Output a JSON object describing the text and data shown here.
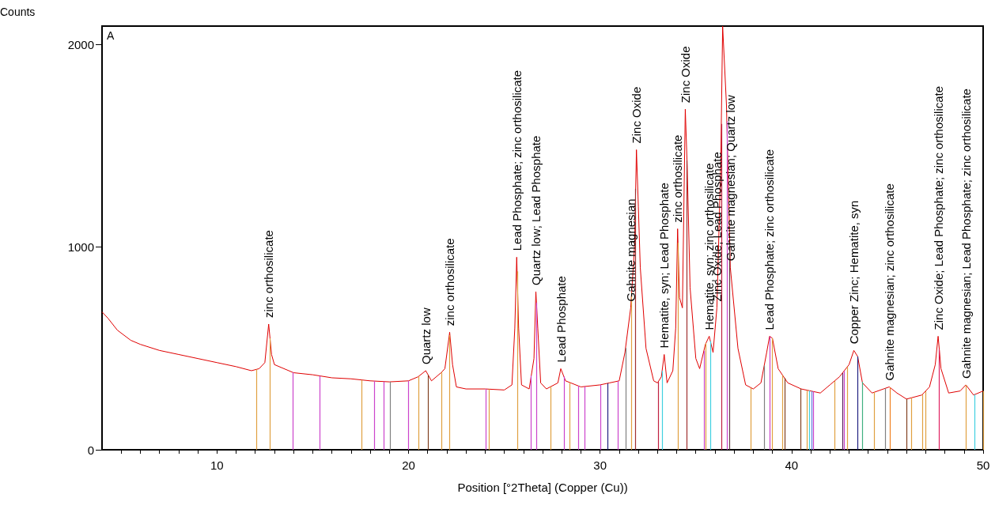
{
  "chart_data": {
    "type": "line",
    "ylabel": "Counts",
    "xlabel": "Position [°2Theta] (Copper (Cu))",
    "xlim": [
      4,
      50
    ],
    "ylim": [
      0,
      2090
    ],
    "xticks": [
      {
        "value": 5,
        "label": null
      },
      {
        "value": 6,
        "label": null
      },
      {
        "value": 7,
        "label": null
      },
      {
        "value": 8,
        "label": null
      },
      {
        "value": 9,
        "label": null
      },
      10,
      {
        "value": 11,
        "label": null
      },
      {
        "value": 12,
        "label": null
      },
      {
        "value": 13,
        "label": null
      },
      {
        "value": 14,
        "label": null
      },
      {
        "value": 15,
        "label": null
      },
      {
        "value": 16,
        "label": null
      },
      {
        "value": 17,
        "label": null
      },
      {
        "value": 18,
        "label": null
      },
      {
        "value": 19,
        "label": null
      },
      20,
      {
        "value": 21,
        "label": null
      },
      {
        "value": 22,
        "label": null
      },
      {
        "value": 23,
        "label": null
      },
      {
        "value": 24,
        "label": null
      },
      {
        "value": 25,
        "label": null
      },
      {
        "value": 26,
        "label": null
      },
      {
        "value": 27,
        "label": null
      },
      {
        "value": 28,
        "label": null
      },
      {
        "value": 29,
        "label": null
      },
      30,
      {
        "value": 31,
        "label": null
      },
      {
        "value": 32,
        "label": null
      },
      {
        "value": 33,
        "label": null
      },
      {
        "value": 34,
        "label": null
      },
      {
        "value": 35,
        "label": null
      },
      {
        "value": 36,
        "label": null
      },
      {
        "value": 37,
        "label": null
      },
      {
        "value": 38,
        "label": null
      },
      {
        "value": 39,
        "label": null
      },
      40,
      {
        "value": 41,
        "label": null
      },
      {
        "value": 42,
        "label": null
      },
      {
        "value": 43,
        "label": null
      },
      {
        "value": 44,
        "label": null
      },
      {
        "value": 45,
        "label": null
      },
      {
        "value": 46,
        "label": null
      },
      {
        "value": 47,
        "label": null
      },
      {
        "value": 48,
        "label": null
      },
      {
        "value": 49,
        "label": null
      },
      50
    ],
    "yticks": [
      0,
      1000,
      2000
    ],
    "grid": false,
    "marker": "none",
    "line_style": "solid",
    "series": [
      {
        "color": "#e00000",
        "x": [
          4.0,
          4.3,
          4.8,
          5.5,
          6.0,
          7,
          8,
          9,
          10,
          11,
          11.8,
          12.2,
          12.5,
          12.7,
          12.85,
          13,
          14,
          15,
          16,
          17,
          18,
          19,
          20,
          20.5,
          20.9,
          21.2,
          21.7,
          21.9,
          22.15,
          22.3,
          22.5,
          23,
          24,
          25,
          25.4,
          25.55,
          25.65,
          25.75,
          25.9,
          26.3,
          26.55,
          26.65,
          26.75,
          26.9,
          27.2,
          27.8,
          27.95,
          28.2,
          29,
          30,
          30.5,
          31,
          31.3,
          31.6,
          31.8,
          31.9,
          32.0,
          32.1,
          32.4,
          32.8,
          33.0,
          33.2,
          33.35,
          33.5,
          33.8,
          33.95,
          34.05,
          34.15,
          34.3,
          34.45,
          34.55,
          34.7,
          35.0,
          35.2,
          35.5,
          35.7,
          35.9,
          36.1,
          36.3,
          36.4,
          36.6,
          36.8,
          37.2,
          37.6,
          38.0,
          38.4,
          38.7,
          38.85,
          39.0,
          39.3,
          39.8,
          40.5,
          41,
          41.5,
          42.0,
          42.5,
          43.0,
          43.25,
          43.45,
          43.7,
          44.2,
          44.8,
          45.1,
          45.5,
          46,
          46.8,
          47.2,
          47.5,
          47.65,
          47.8,
          48.2,
          48.8,
          49.1,
          49.5,
          50
        ],
        "values": [
          680,
          650,
          590,
          540,
          520,
          490,
          470,
          450,
          430,
          410,
          390,
          400,
          430,
          620,
          470,
          420,
          380,
          370,
          355,
          350,
          340,
          335,
          340,
          360,
          390,
          340,
          380,
          400,
          580,
          420,
          310,
          300,
          300,
          295,
          320,
          600,
          950,
          600,
          320,
          300,
          450,
          780,
          600,
          330,
          300,
          330,
          400,
          340,
          310,
          320,
          330,
          340,
          480,
          700,
          1000,
          1480,
          1200,
          900,
          500,
          340,
          330,
          360,
          470,
          330,
          390,
          600,
          1090,
          750,
          700,
          1680,
          1400,
          800,
          450,
          400,
          520,
          560,
          480,
          700,
          1400,
          2090,
          1700,
          900,
          500,
          320,
          300,
          330,
          480,
          560,
          550,
          400,
          330,
          300,
          290,
          280,
          320,
          360,
          420,
          490,
          460,
          330,
          280,
          300,
          310,
          280,
          250,
          270,
          310,
          420,
          560,
          400,
          280,
          290,
          320,
          270,
          290
        ]
      }
    ],
    "ref_lines": [
      {
        "axis": "x",
        "value": 12.07,
        "color": "#e0a040"
      },
      {
        "axis": "x",
        "value": 12.77,
        "color": "#e0a040"
      },
      {
        "axis": "x",
        "value": 13.97,
        "color": "#cc44cc"
      },
      {
        "axis": "x",
        "value": 15.37,
        "color": "#cc44cc"
      },
      {
        "axis": "x",
        "value": 17.57,
        "color": "#e0a040"
      },
      {
        "axis": "x",
        "value": 18.2,
        "color": "#cc44cc"
      },
      {
        "axis": "x",
        "value": 18.71,
        "color": "#cc44cc"
      },
      {
        "axis": "x",
        "value": 19.06,
        "color": "#808080"
      },
      {
        "axis": "x",
        "value": 20.0,
        "color": "#cc44cc"
      },
      {
        "axis": "x",
        "value": 20.53,
        "color": "#e0a040"
      },
      {
        "axis": "x",
        "value": 21.03,
        "color": "#804020"
      },
      {
        "axis": "x",
        "value": 21.74,
        "color": "#e0a040"
      },
      {
        "axis": "x",
        "value": 22.13,
        "color": "#e0a040"
      },
      {
        "axis": "x",
        "value": 24.02,
        "color": "#cc44cc"
      },
      {
        "axis": "x",
        "value": 24.21,
        "color": "#e0a040"
      },
      {
        "axis": "x",
        "value": 25.67,
        "color": "#e0a040"
      },
      {
        "axis": "x",
        "value": 26.41,
        "color": "#cc44cc"
      },
      {
        "axis": "x",
        "value": 26.68,
        "color": "#cc44cc"
      },
      {
        "axis": "x",
        "value": 27.43,
        "color": "#e0a040"
      },
      {
        "axis": "x",
        "value": 28.11,
        "color": "#cc44cc"
      },
      {
        "axis": "x",
        "value": 28.41,
        "color": "#e0a040"
      },
      {
        "axis": "x",
        "value": 28.86,
        "color": "#cc44cc"
      },
      {
        "axis": "x",
        "value": 29.19,
        "color": "#cc44cc"
      },
      {
        "axis": "x",
        "value": 30.03,
        "color": "#cc44cc"
      },
      {
        "axis": "x",
        "value": 30.39,
        "color": "#202080"
      },
      {
        "axis": "x",
        "value": 30.93,
        "color": "#cc44cc"
      },
      {
        "axis": "x",
        "value": 31.33,
        "color": "#808080"
      },
      {
        "axis": "x",
        "value": 31.65,
        "color": "#e0a040"
      },
      {
        "axis": "x",
        "value": 31.86,
        "color": "#a03030"
      },
      {
        "axis": "x",
        "value": 33.03,
        "color": "#c02040"
      },
      {
        "axis": "x",
        "value": 33.24,
        "color": "#40d0e0"
      },
      {
        "axis": "x",
        "value": 34.07,
        "color": "#e0a040"
      },
      {
        "axis": "x",
        "value": 34.54,
        "color": "#a03030"
      },
      {
        "axis": "x",
        "value": 35.42,
        "color": "#cc44cc"
      },
      {
        "axis": "x",
        "value": 35.53,
        "color": "#e0a040"
      },
      {
        "axis": "x",
        "value": 35.76,
        "color": "#40d0e0"
      },
      {
        "axis": "x",
        "value": 36.33,
        "color": "#c02040"
      },
      {
        "axis": "x",
        "value": 36.62,
        "color": "#cc44cc"
      },
      {
        "axis": "x",
        "value": 36.77,
        "color": "#604040"
      },
      {
        "axis": "x",
        "value": 37.89,
        "color": "#e0a040"
      },
      {
        "axis": "x",
        "value": 38.57,
        "color": "#808080"
      },
      {
        "axis": "x",
        "value": 38.88,
        "color": "#cc44cc"
      },
      {
        "axis": "x",
        "value": 39.0,
        "color": "#e0a040"
      },
      {
        "axis": "x",
        "value": 39.53,
        "color": "#e0a040"
      },
      {
        "axis": "x",
        "value": 39.63,
        "color": "#804020"
      },
      {
        "axis": "x",
        "value": 40.49,
        "color": "#804020"
      },
      {
        "axis": "x",
        "value": 40.8,
        "color": "#e0a040"
      },
      {
        "axis": "x",
        "value": 40.91,
        "color": "#40d0e0"
      },
      {
        "axis": "x",
        "value": 41.04,
        "color": "#6080e0"
      },
      {
        "axis": "x",
        "value": 41.14,
        "color": "#cc44cc"
      },
      {
        "axis": "x",
        "value": 42.25,
        "color": "#e0a040"
      },
      {
        "axis": "x",
        "value": 42.65,
        "color": "#602060"
      },
      {
        "axis": "x",
        "value": 42.74,
        "color": "#cc44cc"
      },
      {
        "axis": "x",
        "value": 42.91,
        "color": "#e0a040"
      },
      {
        "axis": "x",
        "value": 43.45,
        "color": "#202080"
      },
      {
        "axis": "x",
        "value": 43.69,
        "color": "#40b080"
      },
      {
        "axis": "x",
        "value": 44.32,
        "color": "#e0a040"
      },
      {
        "axis": "x",
        "value": 44.87,
        "color": "#808080"
      },
      {
        "axis": "x",
        "value": 45.14,
        "color": "#f08020"
      },
      {
        "axis": "x",
        "value": 46.01,
        "color": "#804020"
      },
      {
        "axis": "x",
        "value": 46.24,
        "color": "#e0a040"
      },
      {
        "axis": "x",
        "value": 46.83,
        "color": "#e0a040"
      },
      {
        "axis": "x",
        "value": 46.99,
        "color": "#e0a040"
      },
      {
        "axis": "x",
        "value": 47.71,
        "color": "#e02060"
      },
      {
        "axis": "x",
        "value": 49.09,
        "color": "#e0a040"
      },
      {
        "axis": "x",
        "value": 49.57,
        "color": "#40d0e0"
      },
      {
        "axis": "x",
        "value": 49.99,
        "color": "#e0a040"
      }
    ],
    "annotations": [
      "A",
      {
        "text": "zinc orthosilicate",
        "x": 12.7,
        "y": 620
      },
      {
        "text": "Quartz low",
        "x": 20.9,
        "y": 390
      },
      {
        "text": "zinc orthosilicate",
        "x": 22.15,
        "y": 580
      },
      {
        "text": "Lead Phosphate; zinc orthosilicate",
        "x": 25.65,
        "y": 950
      },
      {
        "text": "Quartz low; Lead Phosphate",
        "x": 26.65,
        "y": 780
      },
      {
        "text": "Lead Phosphate",
        "x": 27.95,
        "y": 400
      },
      {
        "text": "Gahnite magnesian",
        "x": 31.6,
        "y": 700
      },
      {
        "text": "Zinc Oxide",
        "x": 31.9,
        "y": 1480
      },
      {
        "text": "Hematite, syn; Lead Phosphate",
        "x": 33.35,
        "y": 470
      },
      {
        "text": "zinc orthosilicate",
        "x": 34.05,
        "y": 1090
      },
      {
        "text": "Zinc Oxide",
        "x": 34.45,
        "y": 1680
      },
      {
        "text": "Hematite, syn; zinc orthosilicate",
        "x": 35.7,
        "y": 560
      },
      {
        "text": "Zinc Oxide; Lead Phosphate",
        "x": 36.1,
        "y": 700
      },
      {
        "text": "Gahnite magnesian; Quartz low",
        "x": 36.8,
        "y": 900
      },
      {
        "text": "Lead Phosphate; zinc orthosilicate",
        "x": 38.85,
        "y": 560
      },
      {
        "text": "Copper Zinc; Hematite, syn",
        "x": 43.25,
        "y": 490
      },
      {
        "text": "Gahnite magnesian; zinc orthosilicate",
        "x": 45.1,
        "y": 310
      },
      {
        "text": "Zinc Oxide; Lead Phosphate; zinc orthosilicate",
        "x": 47.65,
        "y": 560
      },
      {
        "text": "Gahnite magnesian; Lead Phosphate; zinc orthosilicate",
        "x": 49.1,
        "y": 320
      }
    ]
  }
}
